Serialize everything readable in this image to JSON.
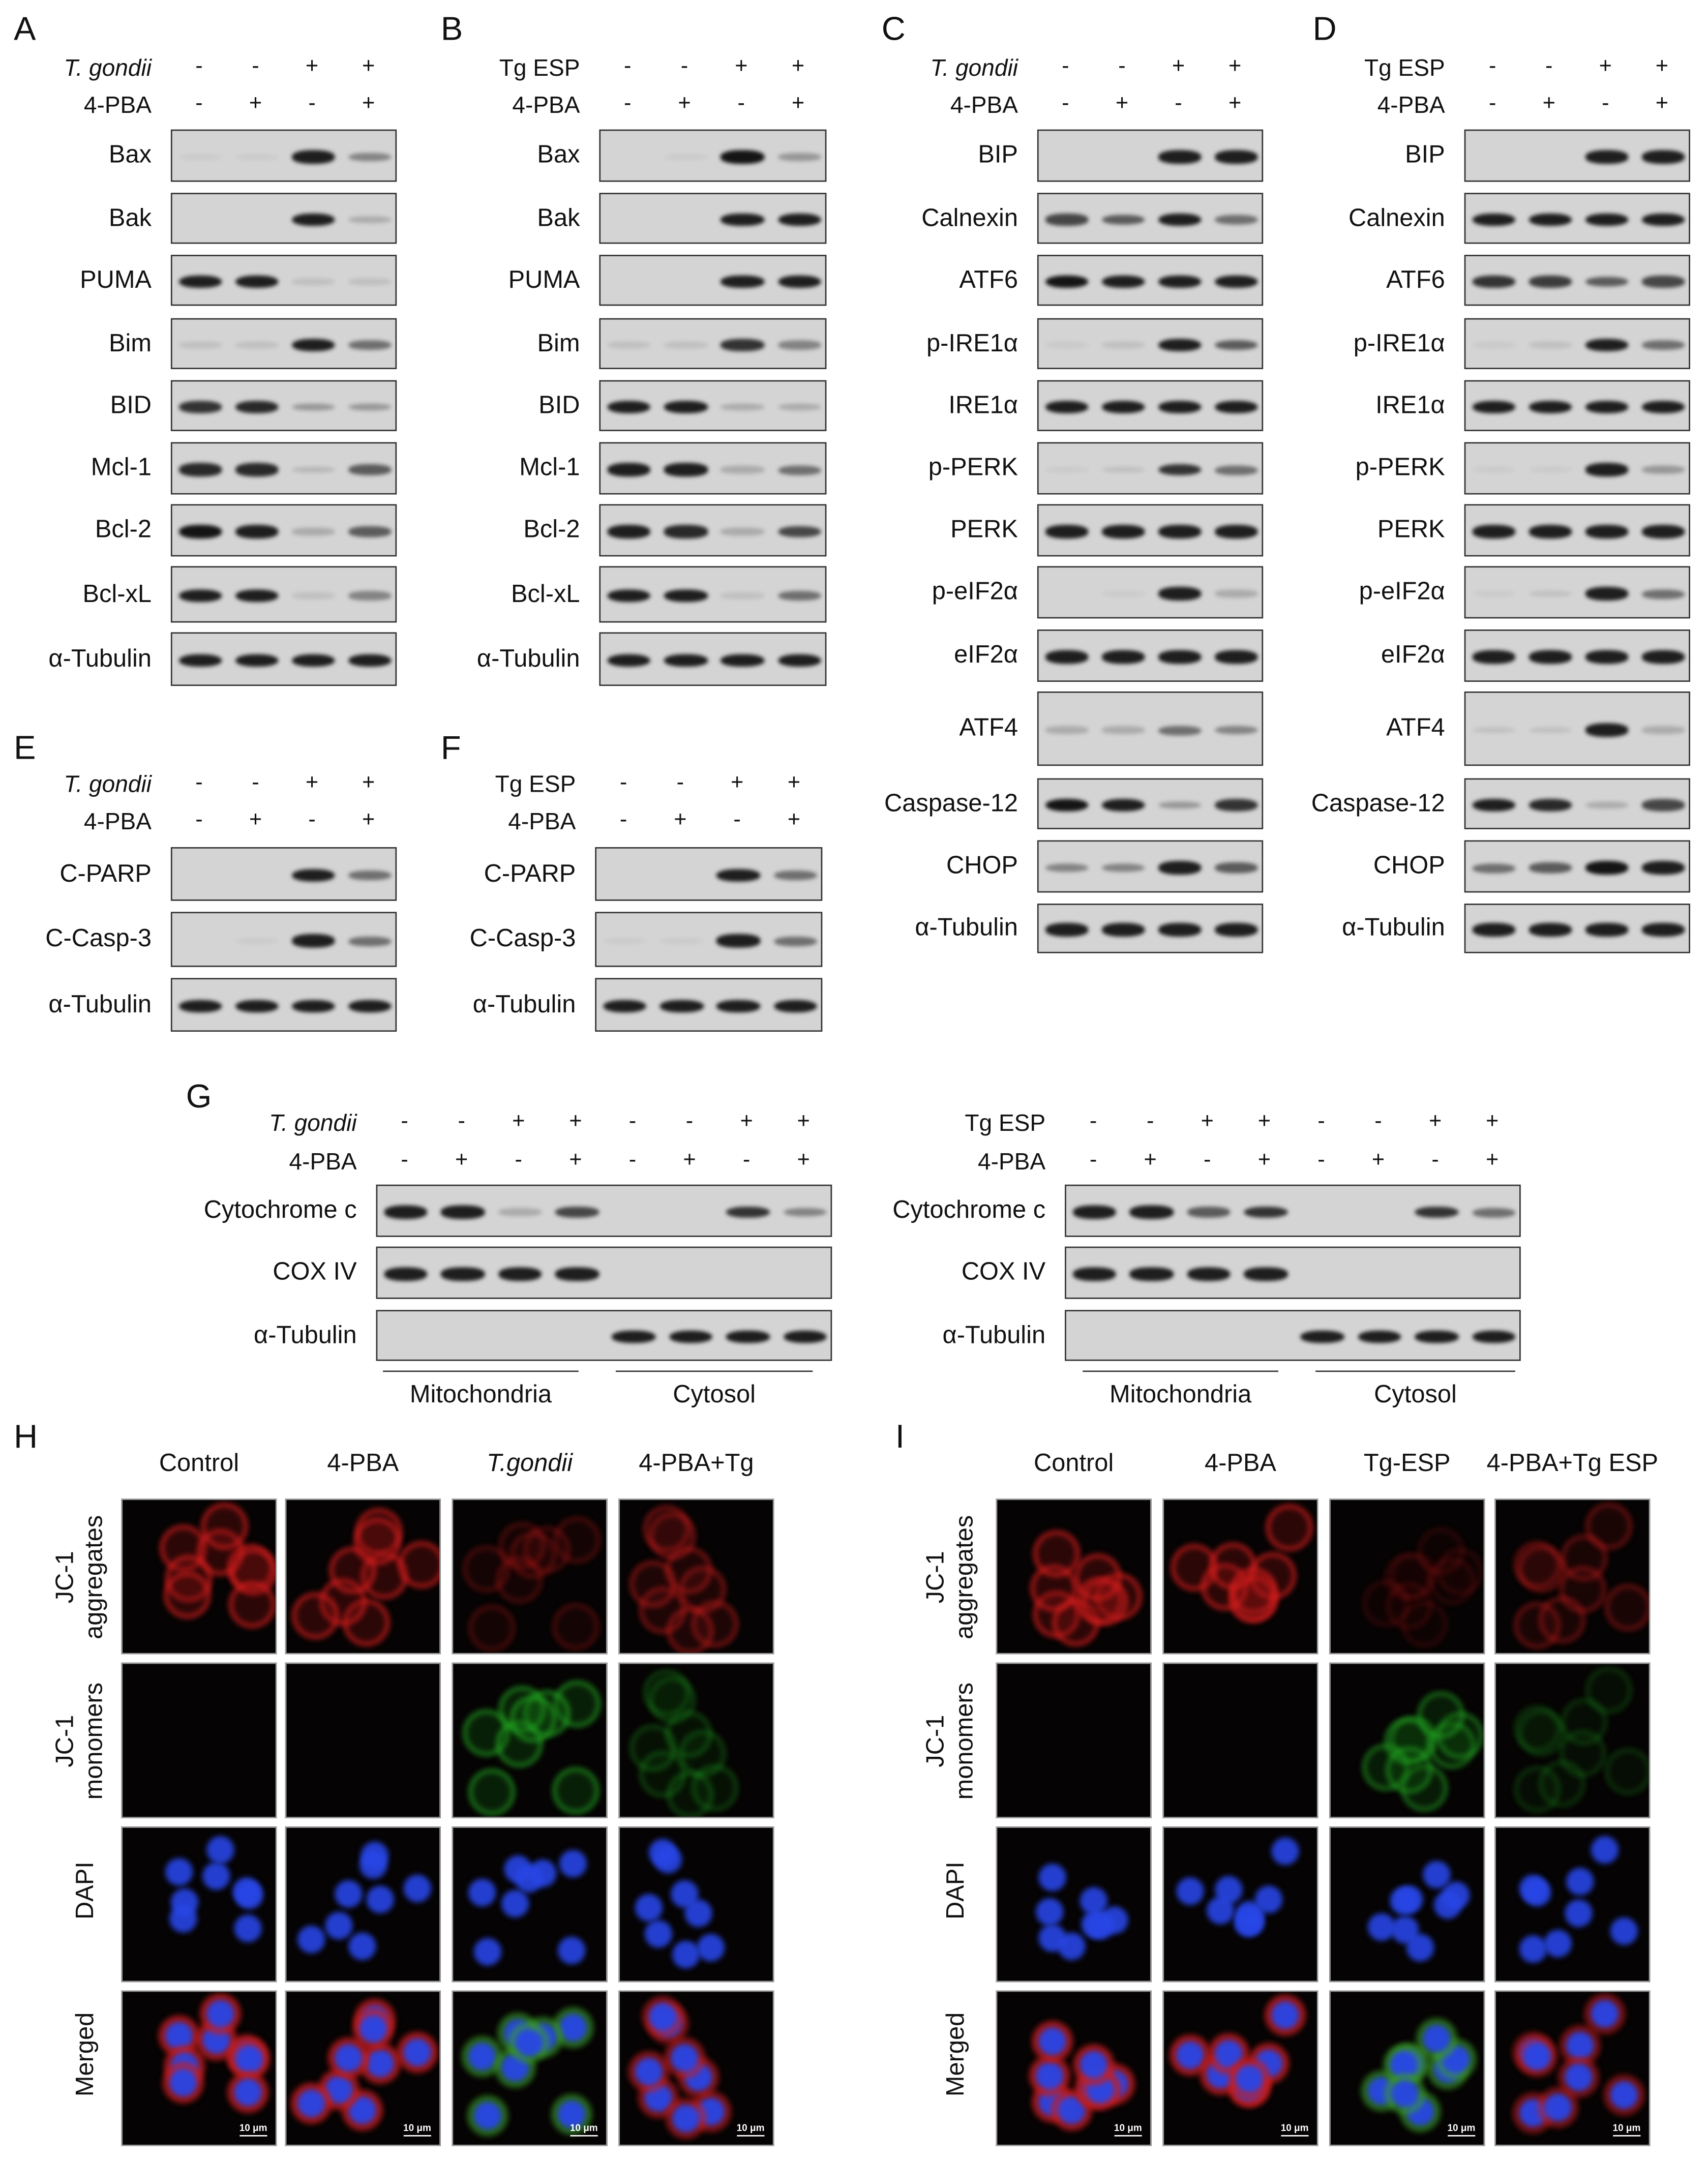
{
  "panels": {
    "A": {
      "letter": "A",
      "treatments": [
        {
          "name": "T. gondii",
          "italic": true,
          "signs": [
            "-",
            "-",
            "+",
            "+"
          ]
        },
        {
          "name": "4-PBA",
          "italic": false,
          "signs": [
            "-",
            "+",
            "-",
            "+"
          ]
        }
      ],
      "rows": [
        {
          "label": "Bax",
          "intensity": [
            0.05,
            0.05,
            0.9,
            0.4
          ]
        },
        {
          "label": "Bak",
          "intensity": [
            0,
            0,
            0.9,
            0.2
          ]
        },
        {
          "label": "PUMA",
          "intensity": [
            0.9,
            0.9,
            0.1,
            0.1
          ]
        },
        {
          "label": "Bim",
          "intensity": [
            0.1,
            0.1,
            0.9,
            0.5
          ]
        },
        {
          "label": "BID",
          "intensity": [
            0.8,
            0.85,
            0.3,
            0.3
          ]
        },
        {
          "label": "Mcl-1",
          "intensity": [
            0.85,
            0.85,
            0.15,
            0.6
          ]
        },
        {
          "label": "Bcl-2",
          "intensity": [
            0.95,
            0.9,
            0.2,
            0.6
          ]
        },
        {
          "label": "Bcl-xL",
          "intensity": [
            0.9,
            0.9,
            0.1,
            0.4
          ]
        },
        {
          "label": "α-Tubulin",
          "intensity": [
            0.9,
            0.9,
            0.9,
            0.9
          ]
        }
      ]
    },
    "B": {
      "letter": "B",
      "treatments": [
        {
          "name": "Tg ESP",
          "italic": false,
          "signs": [
            "-",
            "-",
            "+",
            "+"
          ]
        },
        {
          "name": "4-PBA",
          "italic": false,
          "signs": [
            "-",
            "+",
            "-",
            "+"
          ]
        }
      ],
      "rows": [
        {
          "label": "Bax",
          "intensity": [
            0,
            0.05,
            0.95,
            0.3
          ]
        },
        {
          "label": "Bak",
          "intensity": [
            0,
            0,
            0.9,
            0.9
          ]
        },
        {
          "label": "PUMA",
          "intensity": [
            0,
            0,
            0.9,
            0.9
          ]
        },
        {
          "label": "Bim",
          "intensity": [
            0.1,
            0.1,
            0.8,
            0.4
          ]
        },
        {
          "label": "BID",
          "intensity": [
            0.9,
            0.9,
            0.2,
            0.2
          ]
        },
        {
          "label": "Mcl-1",
          "intensity": [
            0.9,
            0.9,
            0.2,
            0.5
          ]
        },
        {
          "label": "Bcl-2",
          "intensity": [
            0.9,
            0.85,
            0.2,
            0.7
          ]
        },
        {
          "label": "Bcl-xL",
          "intensity": [
            0.9,
            0.9,
            0.1,
            0.5
          ]
        },
        {
          "label": "α-Tubulin",
          "intensity": [
            0.9,
            0.9,
            0.9,
            0.9
          ]
        }
      ]
    },
    "C": {
      "letter": "C",
      "treatments": [
        {
          "name": "T. gondii",
          "italic": true,
          "signs": [
            "-",
            "-",
            "+",
            "+"
          ]
        },
        {
          "name": "4-PBA",
          "italic": false,
          "signs": [
            "-",
            "+",
            "-",
            "+"
          ]
        }
      ],
      "rows": [
        {
          "label": "BIP",
          "intensity": [
            0,
            0,
            0.9,
            0.9
          ]
        },
        {
          "label": "Calnexin",
          "intensity": [
            0.7,
            0.6,
            0.9,
            0.5
          ]
        },
        {
          "label": "ATF6",
          "intensity": [
            0.95,
            0.9,
            0.9,
            0.9
          ]
        },
        {
          "label": "p-IRE1α",
          "intensity": [
            0.05,
            0.1,
            0.9,
            0.6
          ]
        },
        {
          "label": "IRE1α",
          "intensity": [
            0.9,
            0.9,
            0.9,
            0.9
          ]
        },
        {
          "label": "p-PERK",
          "intensity": [
            0.05,
            0.1,
            0.8,
            0.5
          ]
        },
        {
          "label": "PERK",
          "intensity": [
            0.9,
            0.9,
            0.9,
            0.9
          ]
        },
        {
          "label": "p-eIF2α",
          "intensity": [
            0,
            0.05,
            0.9,
            0.2
          ]
        },
        {
          "label": "eIF2α",
          "intensity": [
            0.9,
            0.9,
            0.9,
            0.9
          ]
        },
        {
          "label": "ATF4",
          "intensity": [
            0.2,
            0.2,
            0.5,
            0.4
          ]
        },
        {
          "label": "Caspase-12",
          "intensity": [
            0.95,
            0.9,
            0.3,
            0.8
          ]
        },
        {
          "label": "CHOP",
          "intensity": [
            0.4,
            0.4,
            0.9,
            0.6
          ]
        },
        {
          "label": "α-Tubulin",
          "intensity": [
            0.9,
            0.9,
            0.9,
            0.9
          ]
        }
      ]
    },
    "D": {
      "letter": "D",
      "treatments": [
        {
          "name": "Tg ESP",
          "italic": false,
          "signs": [
            "-",
            "-",
            "+",
            "+"
          ]
        },
        {
          "name": "4-PBA",
          "italic": false,
          "signs": [
            "-",
            "+",
            "-",
            "+"
          ]
        }
      ],
      "rows": [
        {
          "label": "BIP",
          "intensity": [
            0,
            0,
            0.9,
            0.9
          ]
        },
        {
          "label": "Calnexin",
          "intensity": [
            0.9,
            0.9,
            0.9,
            0.9
          ]
        },
        {
          "label": "ATF6",
          "intensity": [
            0.8,
            0.75,
            0.6,
            0.7
          ]
        },
        {
          "label": "p-IRE1α",
          "intensity": [
            0.05,
            0.1,
            0.9,
            0.5
          ]
        },
        {
          "label": "IRE1α",
          "intensity": [
            0.9,
            0.9,
            0.9,
            0.9
          ]
        },
        {
          "label": "p-PERK",
          "intensity": [
            0.05,
            0.05,
            0.9,
            0.3
          ]
        },
        {
          "label": "PERK",
          "intensity": [
            0.9,
            0.9,
            0.9,
            0.9
          ]
        },
        {
          "label": "p-eIF2α",
          "intensity": [
            0.05,
            0.1,
            0.9,
            0.5
          ]
        },
        {
          "label": "eIF2α",
          "intensity": [
            0.9,
            0.9,
            0.9,
            0.9
          ]
        },
        {
          "label": "ATF4",
          "intensity": [
            0.1,
            0.1,
            0.9,
            0.2
          ]
        },
        {
          "label": "Caspase-12",
          "intensity": [
            0.9,
            0.85,
            0.2,
            0.7
          ]
        },
        {
          "label": "CHOP",
          "intensity": [
            0.5,
            0.6,
            0.95,
            0.9
          ]
        },
        {
          "label": "α-Tubulin",
          "intensity": [
            0.9,
            0.9,
            0.9,
            0.9
          ]
        }
      ]
    },
    "E": {
      "letter": "E",
      "treatments": [
        {
          "name": "T. gondii",
          "italic": true,
          "signs": [
            "-",
            "-",
            "+",
            "+"
          ]
        },
        {
          "name": "4-PBA",
          "italic": false,
          "signs": [
            "-",
            "+",
            "-",
            "+"
          ]
        }
      ],
      "rows": [
        {
          "label": "C-PARP",
          "intensity": [
            0,
            0,
            0.9,
            0.5
          ]
        },
        {
          "label": "C-Casp-3",
          "intensity": [
            0,
            0.05,
            0.9,
            0.5
          ]
        },
        {
          "label": "α-Tubulin",
          "intensity": [
            0.9,
            0.9,
            0.9,
            0.9
          ]
        }
      ]
    },
    "F": {
      "letter": "F",
      "treatments": [
        {
          "name": "Tg ESP",
          "italic": false,
          "signs": [
            "-",
            "-",
            "+",
            "+"
          ]
        },
        {
          "name": "4-PBA",
          "italic": false,
          "signs": [
            "-",
            "+",
            "-",
            "+"
          ]
        }
      ],
      "rows": [
        {
          "label": "C-PARP",
          "intensity": [
            0,
            0,
            0.9,
            0.5
          ]
        },
        {
          "label": "C-Casp-3",
          "intensity": [
            0.05,
            0.05,
            0.9,
            0.5
          ]
        },
        {
          "label": "α-Tubulin",
          "intensity": [
            0.9,
            0.9,
            0.9,
            0.9
          ]
        }
      ]
    },
    "G1": {
      "letter": "G",
      "treatments": [
        {
          "name": "T. gondii",
          "italic": true,
          "signs": [
            "-",
            "-",
            "+",
            "+",
            "-",
            "-",
            "+",
            "+"
          ]
        },
        {
          "name": "4-PBA",
          "italic": false,
          "signs": [
            "-",
            "+",
            "-",
            "+",
            "-",
            "+",
            "-",
            "+"
          ]
        }
      ],
      "rows": [
        {
          "label": "Cytochrome c",
          "intensity": [
            0.9,
            0.9,
            0.2,
            0.7,
            0,
            0,
            0.8,
            0.4
          ]
        },
        {
          "label": "COX IV",
          "intensity": [
            0.9,
            0.9,
            0.9,
            0.9,
            0,
            0,
            0,
            0
          ]
        },
        {
          "label": "α-Tubulin",
          "intensity": [
            0,
            0,
            0,
            0,
            0.9,
            0.9,
            0.9,
            0.9
          ]
        }
      ],
      "groups": [
        "Mitochondria",
        "Cytosol"
      ]
    },
    "G2": {
      "letter": "",
      "treatments": [
        {
          "name": "Tg ESP",
          "italic": false,
          "signs": [
            "-",
            "-",
            "+",
            "+",
            "-",
            "-",
            "+",
            "+"
          ]
        },
        {
          "name": "4-PBA",
          "italic": false,
          "signs": [
            "-",
            "+",
            "-",
            "+",
            "-",
            "+",
            "-",
            "+"
          ]
        }
      ],
      "rows": [
        {
          "label": "Cytochrome c",
          "intensity": [
            0.9,
            0.9,
            0.6,
            0.8,
            0,
            0,
            0.8,
            0.5
          ]
        },
        {
          "label": "COX IV",
          "intensity": [
            0.9,
            0.9,
            0.9,
            0.9,
            0,
            0,
            0,
            0
          ]
        },
        {
          "label": "α-Tubulin",
          "intensity": [
            0,
            0,
            0,
            0,
            0.9,
            0.9,
            0.9,
            0.9
          ]
        }
      ],
      "groups": [
        "Mitochondria",
        "Cytosol"
      ]
    }
  },
  "microscopy": {
    "H": {
      "letter": "H",
      "columns": [
        {
          "label": "Control",
          "italic": false
        },
        {
          "label": "4-PBA",
          "italic": false
        },
        {
          "label": "T.gondii",
          "italic": true
        },
        {
          "label": "4-PBA+Tg",
          "italic": false
        }
      ],
      "rows": [
        "JC-1 aggregates",
        "JC-1 monomers",
        "DAPI",
        "Merged"
      ],
      "red_level": [
        0.9,
        0.9,
        0.35,
        0.6
      ],
      "green_level": [
        0,
        0,
        0.8,
        0.4
      ]
    },
    "I": {
      "letter": "I",
      "columns": [
        {
          "label": "Control",
          "italic": false
        },
        {
          "label": "4-PBA",
          "italic": false
        },
        {
          "label": "Tg-ESP",
          "italic": false
        },
        {
          "label": "4-PBA+Tg ESP",
          "italic": false
        }
      ],
      "rows": [
        "JC-1 aggregates",
        "JC-1 monomers",
        "DAPI",
        "Merged"
      ],
      "red_level": [
        0.9,
        0.9,
        0.2,
        0.5
      ],
      "green_level": [
        0,
        0,
        0.7,
        0.3
      ]
    },
    "scale_bar": "10 μm"
  },
  "colors": {
    "red": "#e02020",
    "green": "#30c030",
    "blue": "#2040e0"
  }
}
